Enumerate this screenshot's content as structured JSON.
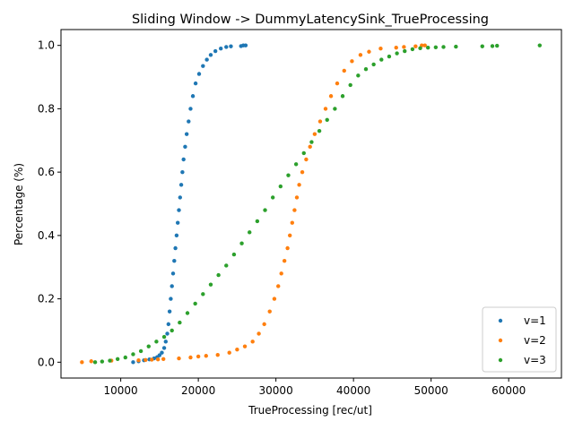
{
  "chart_data": {
    "type": "scatter",
    "title": "Sliding Window -> DummyLatencySink_TrueProcessing",
    "xlabel": "TrueProcessing [rec/ut]",
    "ylabel": "Percentage (%)",
    "xlim": [
      2300,
      66800
    ],
    "ylim": [
      -0.05,
      1.05
    ],
    "xticks": [
      10000,
      20000,
      30000,
      40000,
      50000,
      60000
    ],
    "xtick_labels": [
      "10000",
      "20000",
      "30000",
      "40000",
      "50000",
      "60000"
    ],
    "yticks": [
      0.0,
      0.2,
      0.4,
      0.6,
      0.8,
      1.0
    ],
    "ytick_labels": [
      "0.0",
      "0.2",
      "0.4",
      "0.6",
      "0.8",
      "1.0"
    ],
    "grid": false,
    "legend_position": "lower-right",
    "series": [
      {
        "name": "v=1",
        "color": "#1f77b4",
        "points": [
          [
            11600,
            0.0
          ],
          [
            12300,
            0.003
          ],
          [
            13000,
            0.006
          ],
          [
            13700,
            0.009
          ],
          [
            14300,
            0.012
          ],
          [
            14700,
            0.016
          ],
          [
            15000,
            0.022
          ],
          [
            15300,
            0.03
          ],
          [
            15600,
            0.045
          ],
          [
            15800,
            0.065
          ],
          [
            16000,
            0.09
          ],
          [
            16150,
            0.12
          ],
          [
            16300,
            0.16
          ],
          [
            16450,
            0.2
          ],
          [
            16600,
            0.24
          ],
          [
            16750,
            0.28
          ],
          [
            16900,
            0.32
          ],
          [
            17050,
            0.36
          ],
          [
            17200,
            0.4
          ],
          [
            17350,
            0.44
          ],
          [
            17500,
            0.48
          ],
          [
            17650,
            0.52
          ],
          [
            17800,
            0.56
          ],
          [
            17950,
            0.6
          ],
          [
            18100,
            0.64
          ],
          [
            18300,
            0.68
          ],
          [
            18500,
            0.72
          ],
          [
            18750,
            0.76
          ],
          [
            19000,
            0.8
          ],
          [
            19300,
            0.84
          ],
          [
            19650,
            0.88
          ],
          [
            20100,
            0.91
          ],
          [
            20600,
            0.935
          ],
          [
            21100,
            0.955
          ],
          [
            21600,
            0.97
          ],
          [
            22200,
            0.982
          ],
          [
            22900,
            0.99
          ],
          [
            23600,
            0.995
          ],
          [
            24200,
            0.997
          ],
          [
            25500,
            0.998
          ],
          [
            25800,
            1.0
          ],
          [
            26100,
            1.0
          ]
        ]
      },
      {
        "name": "v=2",
        "color": "#ff7f0e",
        "points": [
          [
            5000,
            0.0
          ],
          [
            6200,
            0.003
          ],
          [
            8800,
            0.005
          ],
          [
            12300,
            0.006
          ],
          [
            13200,
            0.007
          ],
          [
            14000,
            0.008
          ],
          [
            14800,
            0.009
          ],
          [
            15500,
            0.01
          ],
          [
            17500,
            0.012
          ],
          [
            19000,
            0.015
          ],
          [
            20000,
            0.018
          ],
          [
            21000,
            0.02
          ],
          [
            22500,
            0.023
          ],
          [
            24000,
            0.03
          ],
          [
            25000,
            0.04
          ],
          [
            26000,
            0.05
          ],
          [
            27000,
            0.065
          ],
          [
            27800,
            0.09
          ],
          [
            28500,
            0.12
          ],
          [
            29200,
            0.16
          ],
          [
            29800,
            0.2
          ],
          [
            30300,
            0.24
          ],
          [
            30700,
            0.28
          ],
          [
            31100,
            0.32
          ],
          [
            31500,
            0.36
          ],
          [
            31800,
            0.4
          ],
          [
            32100,
            0.44
          ],
          [
            32400,
            0.48
          ],
          [
            32700,
            0.52
          ],
          [
            33000,
            0.56
          ],
          [
            33400,
            0.6
          ],
          [
            33900,
            0.64
          ],
          [
            34400,
            0.68
          ],
          [
            35000,
            0.72
          ],
          [
            35700,
            0.76
          ],
          [
            36400,
            0.8
          ],
          [
            37100,
            0.84
          ],
          [
            37900,
            0.88
          ],
          [
            38800,
            0.92
          ],
          [
            39800,
            0.95
          ],
          [
            40900,
            0.97
          ],
          [
            42000,
            0.98
          ],
          [
            43500,
            0.99
          ],
          [
            45500,
            0.993
          ],
          [
            46500,
            0.995
          ],
          [
            48000,
            0.997
          ],
          [
            48800,
            1.0
          ],
          [
            49200,
            1.0
          ]
        ]
      },
      {
        "name": "v=3",
        "color": "#2ca02c",
        "points": [
          [
            6700,
            0.0
          ],
          [
            7600,
            0.002
          ],
          [
            8600,
            0.005
          ],
          [
            9600,
            0.01
          ],
          [
            10600,
            0.015
          ],
          [
            11600,
            0.025
          ],
          [
            12600,
            0.035
          ],
          [
            13600,
            0.05
          ],
          [
            14600,
            0.065
          ],
          [
            15600,
            0.08
          ],
          [
            16600,
            0.1
          ],
          [
            17600,
            0.125
          ],
          [
            18600,
            0.155
          ],
          [
            19600,
            0.185
          ],
          [
            20600,
            0.215
          ],
          [
            21600,
            0.245
          ],
          [
            22600,
            0.275
          ],
          [
            23600,
            0.305
          ],
          [
            24600,
            0.34
          ],
          [
            25600,
            0.375
          ],
          [
            26600,
            0.41
          ],
          [
            27600,
            0.445
          ],
          [
            28600,
            0.48
          ],
          [
            29600,
            0.52
          ],
          [
            30600,
            0.555
          ],
          [
            31600,
            0.59
          ],
          [
            32600,
            0.625
          ],
          [
            33600,
            0.66
          ],
          [
            34600,
            0.695
          ],
          [
            35600,
            0.73
          ],
          [
            36600,
            0.765
          ],
          [
            37600,
            0.8
          ],
          [
            38600,
            0.84
          ],
          [
            39600,
            0.875
          ],
          [
            40600,
            0.905
          ],
          [
            41600,
            0.925
          ],
          [
            42600,
            0.94
          ],
          [
            43600,
            0.955
          ],
          [
            44600,
            0.965
          ],
          [
            45600,
            0.975
          ],
          [
            46600,
            0.982
          ],
          [
            47600,
            0.988
          ],
          [
            48600,
            0.991
          ],
          [
            49600,
            0.993
          ],
          [
            50600,
            0.994
          ],
          [
            51600,
            0.995
          ],
          [
            53200,
            0.996
          ],
          [
            56600,
            0.997
          ],
          [
            57900,
            0.998
          ],
          [
            58500,
            0.999
          ],
          [
            64000,
            1.0
          ]
        ]
      }
    ]
  }
}
